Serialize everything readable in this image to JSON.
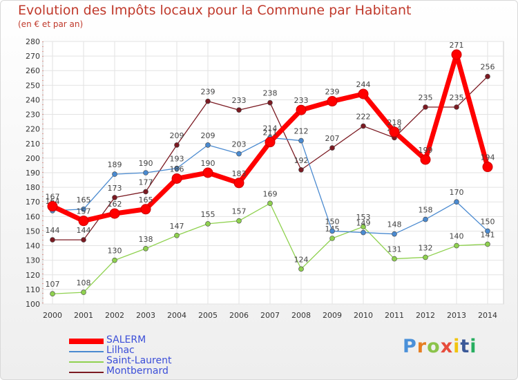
{
  "chart_data": {
    "type": "line",
    "title": "Evolution des Impôts locaux pour la Commune par Habitant",
    "subtitle": "(en € et par an)",
    "xlabel": "",
    "ylabel": "",
    "x": [
      "2000",
      "2001",
      "2002",
      "2003",
      "2004",
      "2005",
      "2006",
      "2007",
      "2008",
      "2009",
      "2010",
      "2011",
      "2012",
      "2013",
      "2014"
    ],
    "ylim": [
      100,
      280
    ],
    "yticks": [
      100,
      110,
      120,
      130,
      140,
      150,
      160,
      170,
      180,
      190,
      200,
      210,
      220,
      230,
      240,
      250,
      260,
      270,
      280
    ],
    "grid": true,
    "series": [
      {
        "name": "Montbernard",
        "color": "#7b1a22",
        "values": [
          144,
          144,
          173,
          177,
          209,
          239,
          233,
          238,
          192,
          207,
          222,
          214,
          235,
          235,
          256
        ]
      },
      {
        "name": "Saint-Laurent",
        "color": "#8fd14f",
        "values": [
          107,
          108,
          130,
          138,
          147,
          155,
          157,
          169,
          124,
          145,
          153,
          131,
          132,
          140,
          141
        ]
      },
      {
        "name": "Lilhac",
        "color": "#4a8ad0",
        "values": [
          164,
          165,
          189,
          190,
          193,
          209,
          203,
          214,
          212,
          150,
          149,
          148,
          158,
          170,
          150
        ]
      },
      {
        "name": "SALERM",
        "color": "#ff0000",
        "values": [
          167,
          157,
          162,
          165,
          186,
          190,
          183,
          211,
          233,
          239,
          244,
          218,
          199,
          271,
          194
        ]
      }
    ],
    "legend": [
      "SALERM",
      "Lilhac",
      "Saint-Laurent",
      "Montbernard"
    ],
    "legend_position": "bottom-left"
  },
  "brand": {
    "letters": [
      "P",
      "r",
      "o",
      "x",
      "i",
      "t",
      "i"
    ]
  }
}
